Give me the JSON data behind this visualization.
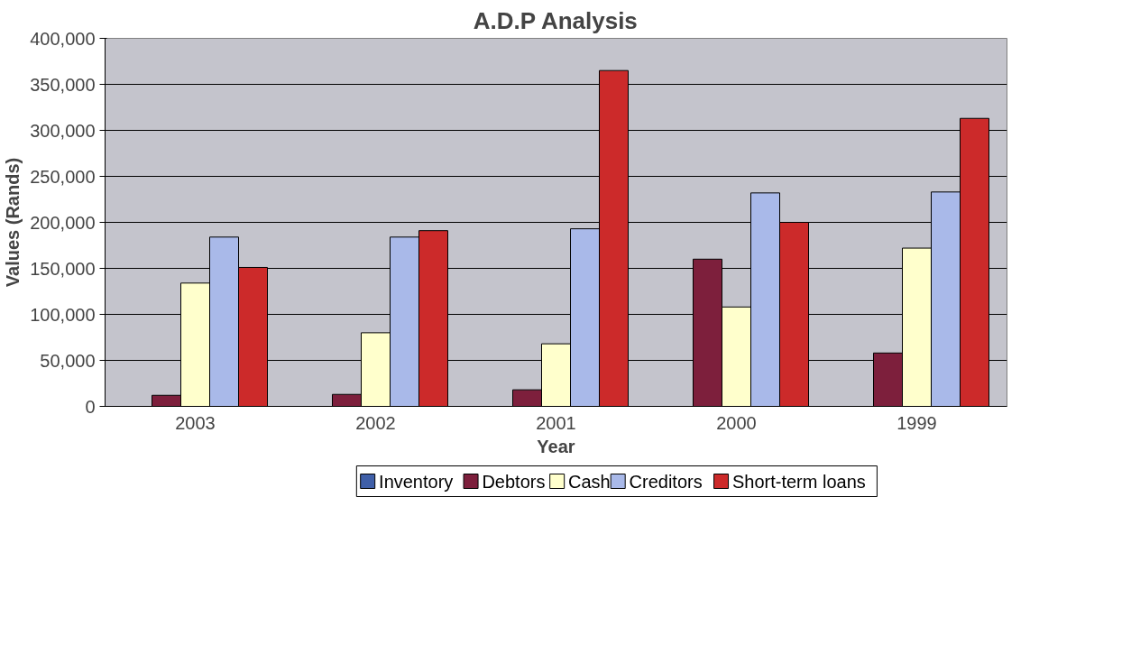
{
  "chart_data": {
    "type": "bar",
    "title": "A.D.P Analysis",
    "xlabel": "Year",
    "ylabel": "Values (Rands)",
    "categories": [
      "2003",
      "2002",
      "2001",
      "2000",
      "1999"
    ],
    "series": [
      {
        "name": "Inventory",
        "color": "#3f5fa8",
        "values": [
          0,
          0,
          0,
          0,
          0
        ]
      },
      {
        "name": "Debtors",
        "color": "#7d1f3c",
        "values": [
          12000,
          13000,
          18000,
          160000,
          58000
        ]
      },
      {
        "name": "Cash",
        "color": "#ffffcc",
        "values": [
          134000,
          80000,
          68000,
          108000,
          172000
        ]
      },
      {
        "name": "Creditors",
        "color": "#a9b9e9",
        "values": [
          184000,
          184000,
          193000,
          232000,
          233000
        ]
      },
      {
        "name": "Short-term loans",
        "color": "#cc2a2a",
        "values": [
          151000,
          191000,
          365000,
          200000,
          313000
        ]
      }
    ],
    "ylim": [
      0,
      400000
    ],
    "yticks": [
      {
        "value": 0,
        "label": "0"
      },
      {
        "value": 50000,
        "label": "50,000"
      },
      {
        "value": 100000,
        "label": "100,000"
      },
      {
        "value": 150000,
        "label": "150,000"
      },
      {
        "value": 200000,
        "label": "200,000"
      },
      {
        "value": 250000,
        "label": "250,000"
      },
      {
        "value": 300000,
        "label": "300,000"
      },
      {
        "value": 350000,
        "label": "350,000"
      },
      {
        "value": 400000,
        "label": "400,000"
      }
    ],
    "grid": "y",
    "legend": "bottom"
  }
}
